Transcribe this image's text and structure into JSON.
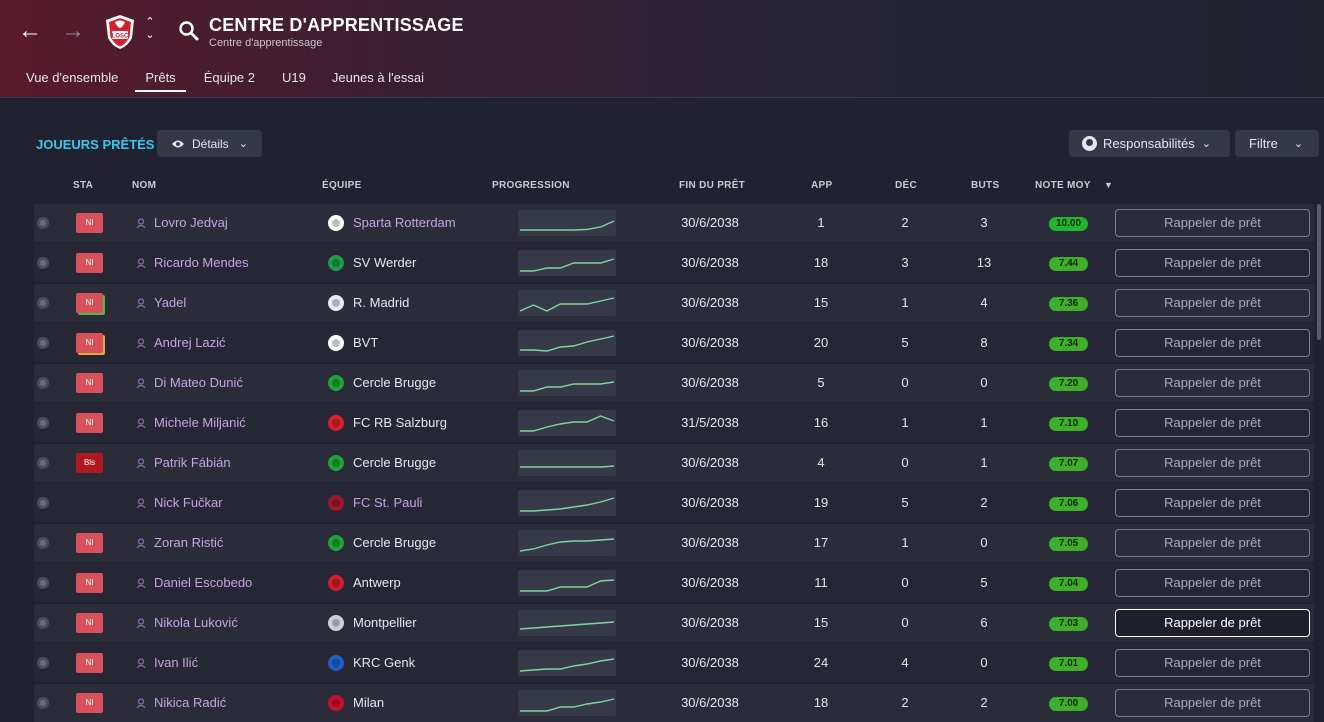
{
  "header": {
    "title": "CENTRE D'APPRENTISSAGE",
    "subtitle": "Centre d'apprentissage",
    "club_badge_text": "LOSC",
    "tabs": [
      {
        "label": "Vue d'ensemble",
        "active": false
      },
      {
        "label": "Prêts",
        "active": true
      },
      {
        "label": "Équipe 2",
        "active": false
      },
      {
        "label": "U19",
        "active": false
      },
      {
        "label": "Jeunes à l'essai",
        "active": false
      }
    ]
  },
  "section": {
    "title": "JOUEURS PRÊTÉS",
    "details_label": "Détails",
    "responsibilities_label": "Responsabilités",
    "filter_label": "Filtre"
  },
  "columns": {
    "sta": "STA",
    "name": "NOM",
    "team": "ÉQUIPE",
    "progress": "PROGRESSION",
    "loan_end": "FIN DU PRÊT",
    "apps": "APP",
    "dec": "DÉC",
    "goals": "BUTS",
    "rating": "NOTE MOY"
  },
  "colors": {
    "accent": "#36c8f0",
    "player_name": "#c8a2e4",
    "rating_green": "#3fae2a",
    "status_ni": "#d8515a",
    "status_bls": "#b01820"
  },
  "recall_label": "Rappeler de prêt",
  "rows": [
    {
      "status": "NI",
      "status_edge": "",
      "name": "Lovro Jedvaj",
      "team": "Sparta Rotterdam",
      "team_is_link": true,
      "team_icon": "sparta-crest-icon",
      "team_color": "#ffffff",
      "progress": [
        0.15,
        0.15,
        0.15,
        0.15,
        0.15,
        0.18,
        0.3,
        0.6
      ],
      "loan_end": "30/6/2038",
      "apps": "1",
      "dec": "2",
      "goals": "3",
      "rating": "10.00"
    },
    {
      "status": "NI",
      "status_edge": "",
      "name": "Ricardo Mendes",
      "team": "SV Werder",
      "team_is_link": false,
      "team_icon": "werder-crest-icon",
      "team_color": "#1d9b48",
      "progress": [
        0.1,
        0.1,
        0.25,
        0.25,
        0.5,
        0.5,
        0.5,
        0.7
      ],
      "loan_end": "30/6/2038",
      "apps": "18",
      "dec": "3",
      "goals": "13",
      "rating": "7.44"
    },
    {
      "status": "NI",
      "status_edge": "green",
      "name": "Yadel",
      "team": "R. Madrid",
      "team_is_link": false,
      "team_icon": "real-madrid-crest-icon",
      "team_color": "#e8e8f0",
      "progress": [
        0.1,
        0.4,
        0.1,
        0.45,
        0.45,
        0.45,
        0.6,
        0.75
      ],
      "loan_end": "30/6/2038",
      "apps": "15",
      "dec": "1",
      "goals": "4",
      "rating": "7.36"
    },
    {
      "status": "NI",
      "status_edge": "orange",
      "name": "Andrej Lazić",
      "team": "BVT",
      "team_is_link": false,
      "team_icon": "bvt-crest-icon",
      "team_color": "#ffffff",
      "progress": [
        0.15,
        0.15,
        0.1,
        0.3,
        0.35,
        0.55,
        0.7,
        0.85
      ],
      "loan_end": "30/6/2038",
      "apps": "20",
      "dec": "5",
      "goals": "8",
      "rating": "7.34"
    },
    {
      "status": "NI",
      "status_edge": "",
      "name": "Di Mateo Dunić",
      "team": "Cercle Brugge",
      "team_is_link": false,
      "team_icon": "cercle-brugge-crest-icon",
      "team_color": "#1fa33b",
      "progress": [
        0.1,
        0.1,
        0.3,
        0.3,
        0.45,
        0.45,
        0.45,
        0.55
      ],
      "loan_end": "30/6/2038",
      "apps": "5",
      "dec": "0",
      "goals": "0",
      "rating": "7.20"
    },
    {
      "status": "NI",
      "status_edge": "",
      "name": "Michele Miljanić",
      "team": "FC RB Salzburg",
      "team_is_link": false,
      "team_icon": "salzburg-crest-icon",
      "team_color": "#d8202f",
      "progress": [
        0.1,
        0.1,
        0.3,
        0.45,
        0.55,
        0.55,
        0.85,
        0.6
      ],
      "loan_end": "31/5/2038",
      "apps": "16",
      "dec": "1",
      "goals": "1",
      "rating": "7.10"
    },
    {
      "status": "Bls",
      "status_edge": "",
      "name": "Patrik Fábián",
      "team": "Cercle Brugge",
      "team_is_link": false,
      "team_icon": "cercle-brugge-crest-icon",
      "team_color": "#1fa33b",
      "progress": [
        0.3,
        0.3,
        0.3,
        0.3,
        0.3,
        0.3,
        0.3,
        0.35
      ],
      "loan_end": "30/6/2038",
      "apps": "4",
      "dec": "0",
      "goals": "1",
      "rating": "7.07"
    },
    {
      "status": "",
      "status_edge": "",
      "name": "Nick Fučkar",
      "team": "FC St. Pauli",
      "team_is_link": true,
      "team_icon": "st-pauli-crest-icon",
      "team_color": "#a0182a",
      "progress": [
        0.1,
        0.1,
        0.15,
        0.2,
        0.3,
        0.4,
        0.55,
        0.75
      ],
      "loan_end": "30/6/2038",
      "apps": "19",
      "dec": "5",
      "goals": "2",
      "rating": "7.06"
    },
    {
      "status": "NI",
      "status_edge": "",
      "name": "Zoran Ristić",
      "team": "Cercle Brugge",
      "team_is_link": false,
      "team_icon": "cercle-brugge-crest-icon",
      "team_color": "#1fa33b",
      "progress": [
        0.1,
        0.2,
        0.4,
        0.55,
        0.6,
        0.6,
        0.65,
        0.7
      ],
      "loan_end": "30/6/2038",
      "apps": "17",
      "dec": "1",
      "goals": "0",
      "rating": "7.05"
    },
    {
      "status": "NI",
      "status_edge": "",
      "name": "Daniel Escobedo",
      "team": "Antwerp",
      "team_is_link": false,
      "team_icon": "antwerp-crest-icon",
      "team_color": "#d41e2a",
      "progress": [
        0.1,
        0.1,
        0.1,
        0.3,
        0.3,
        0.3,
        0.6,
        0.65
      ],
      "loan_end": "30/6/2038",
      "apps": "11",
      "dec": "0",
      "goals": "5",
      "rating": "7.04"
    },
    {
      "status": "NI",
      "status_edge": "",
      "name": "Nikola Luković",
      "team": "Montpellier",
      "team_is_link": false,
      "team_icon": "montpellier-crest-icon",
      "team_color": "#d0d0d8",
      "progress": [
        0.2,
        0.25,
        0.3,
        0.35,
        0.4,
        0.45,
        0.5,
        0.55
      ],
      "loan_end": "30/6/2038",
      "apps": "15",
      "dec": "0",
      "goals": "6",
      "rating": "7.03"
    },
    {
      "status": "NI",
      "status_edge": "",
      "name": "Ivan Ilić",
      "team": "KRC Genk",
      "team_is_link": false,
      "team_icon": "genk-crest-icon",
      "team_color": "#1e5fc8",
      "progress": [
        0.1,
        0.15,
        0.2,
        0.2,
        0.35,
        0.45,
        0.6,
        0.7
      ],
      "loan_end": "30/6/2038",
      "apps": "24",
      "dec": "4",
      "goals": "0",
      "rating": "7.01"
    },
    {
      "status": "NI",
      "status_edge": "",
      "name": "Nikica Radić",
      "team": "Milan",
      "team_is_link": false,
      "team_icon": "milan-crest-icon",
      "team_color": "#c8102e",
      "progress": [
        0.1,
        0.1,
        0.1,
        0.3,
        0.3,
        0.45,
        0.55,
        0.7
      ],
      "loan_end": "30/6/2038",
      "apps": "18",
      "dec": "2",
      "goals": "2",
      "rating": "7.00"
    }
  ]
}
